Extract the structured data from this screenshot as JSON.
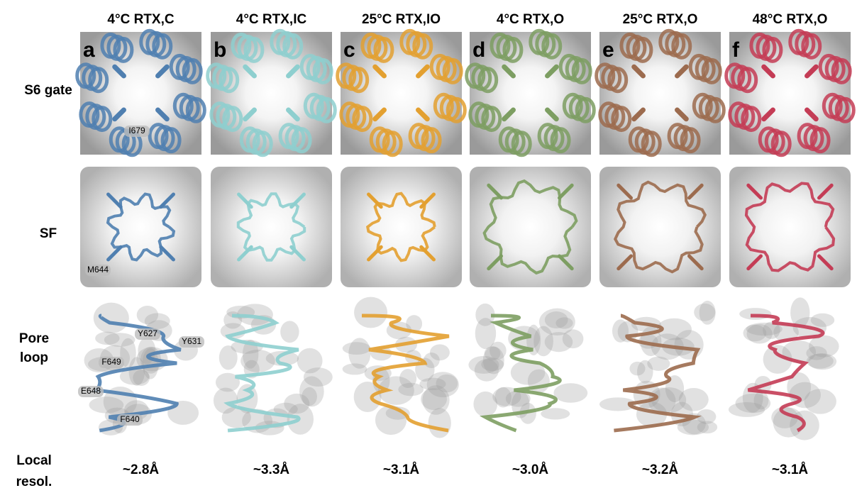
{
  "columns": [
    {
      "header": "4°C RTX,C",
      "letter": "a",
      "resolution": "~2.8Å"
    },
    {
      "header": "4°C RTX,IC",
      "letter": "b",
      "resolution": "~3.3Å"
    },
    {
      "header": "25°C RTX,IO",
      "letter": "c",
      "resolution": "~3.1Å"
    },
    {
      "header": "4°C RTX,O",
      "letter": "d",
      "resolution": "~3.0Å"
    },
    {
      "header": "25°C RTX,O",
      "letter": "e",
      "resolution": "~3.2Å"
    },
    {
      "header": "48°C RTX,O",
      "letter": "f",
      "resolution": "~3.1Å"
    }
  ],
  "rows": [
    {
      "lines": [
        "S6 gate"
      ]
    },
    {
      "lines": [
        "SF"
      ]
    },
    {
      "lines": [
        "Pore",
        "loop"
      ]
    },
    {
      "lines": [
        "Local",
        "resol."
      ]
    }
  ],
  "residue_labels": [
    "I679",
    "M644",
    "Y627",
    "Y631",
    "F649",
    "E648",
    "F640"
  ]
}
